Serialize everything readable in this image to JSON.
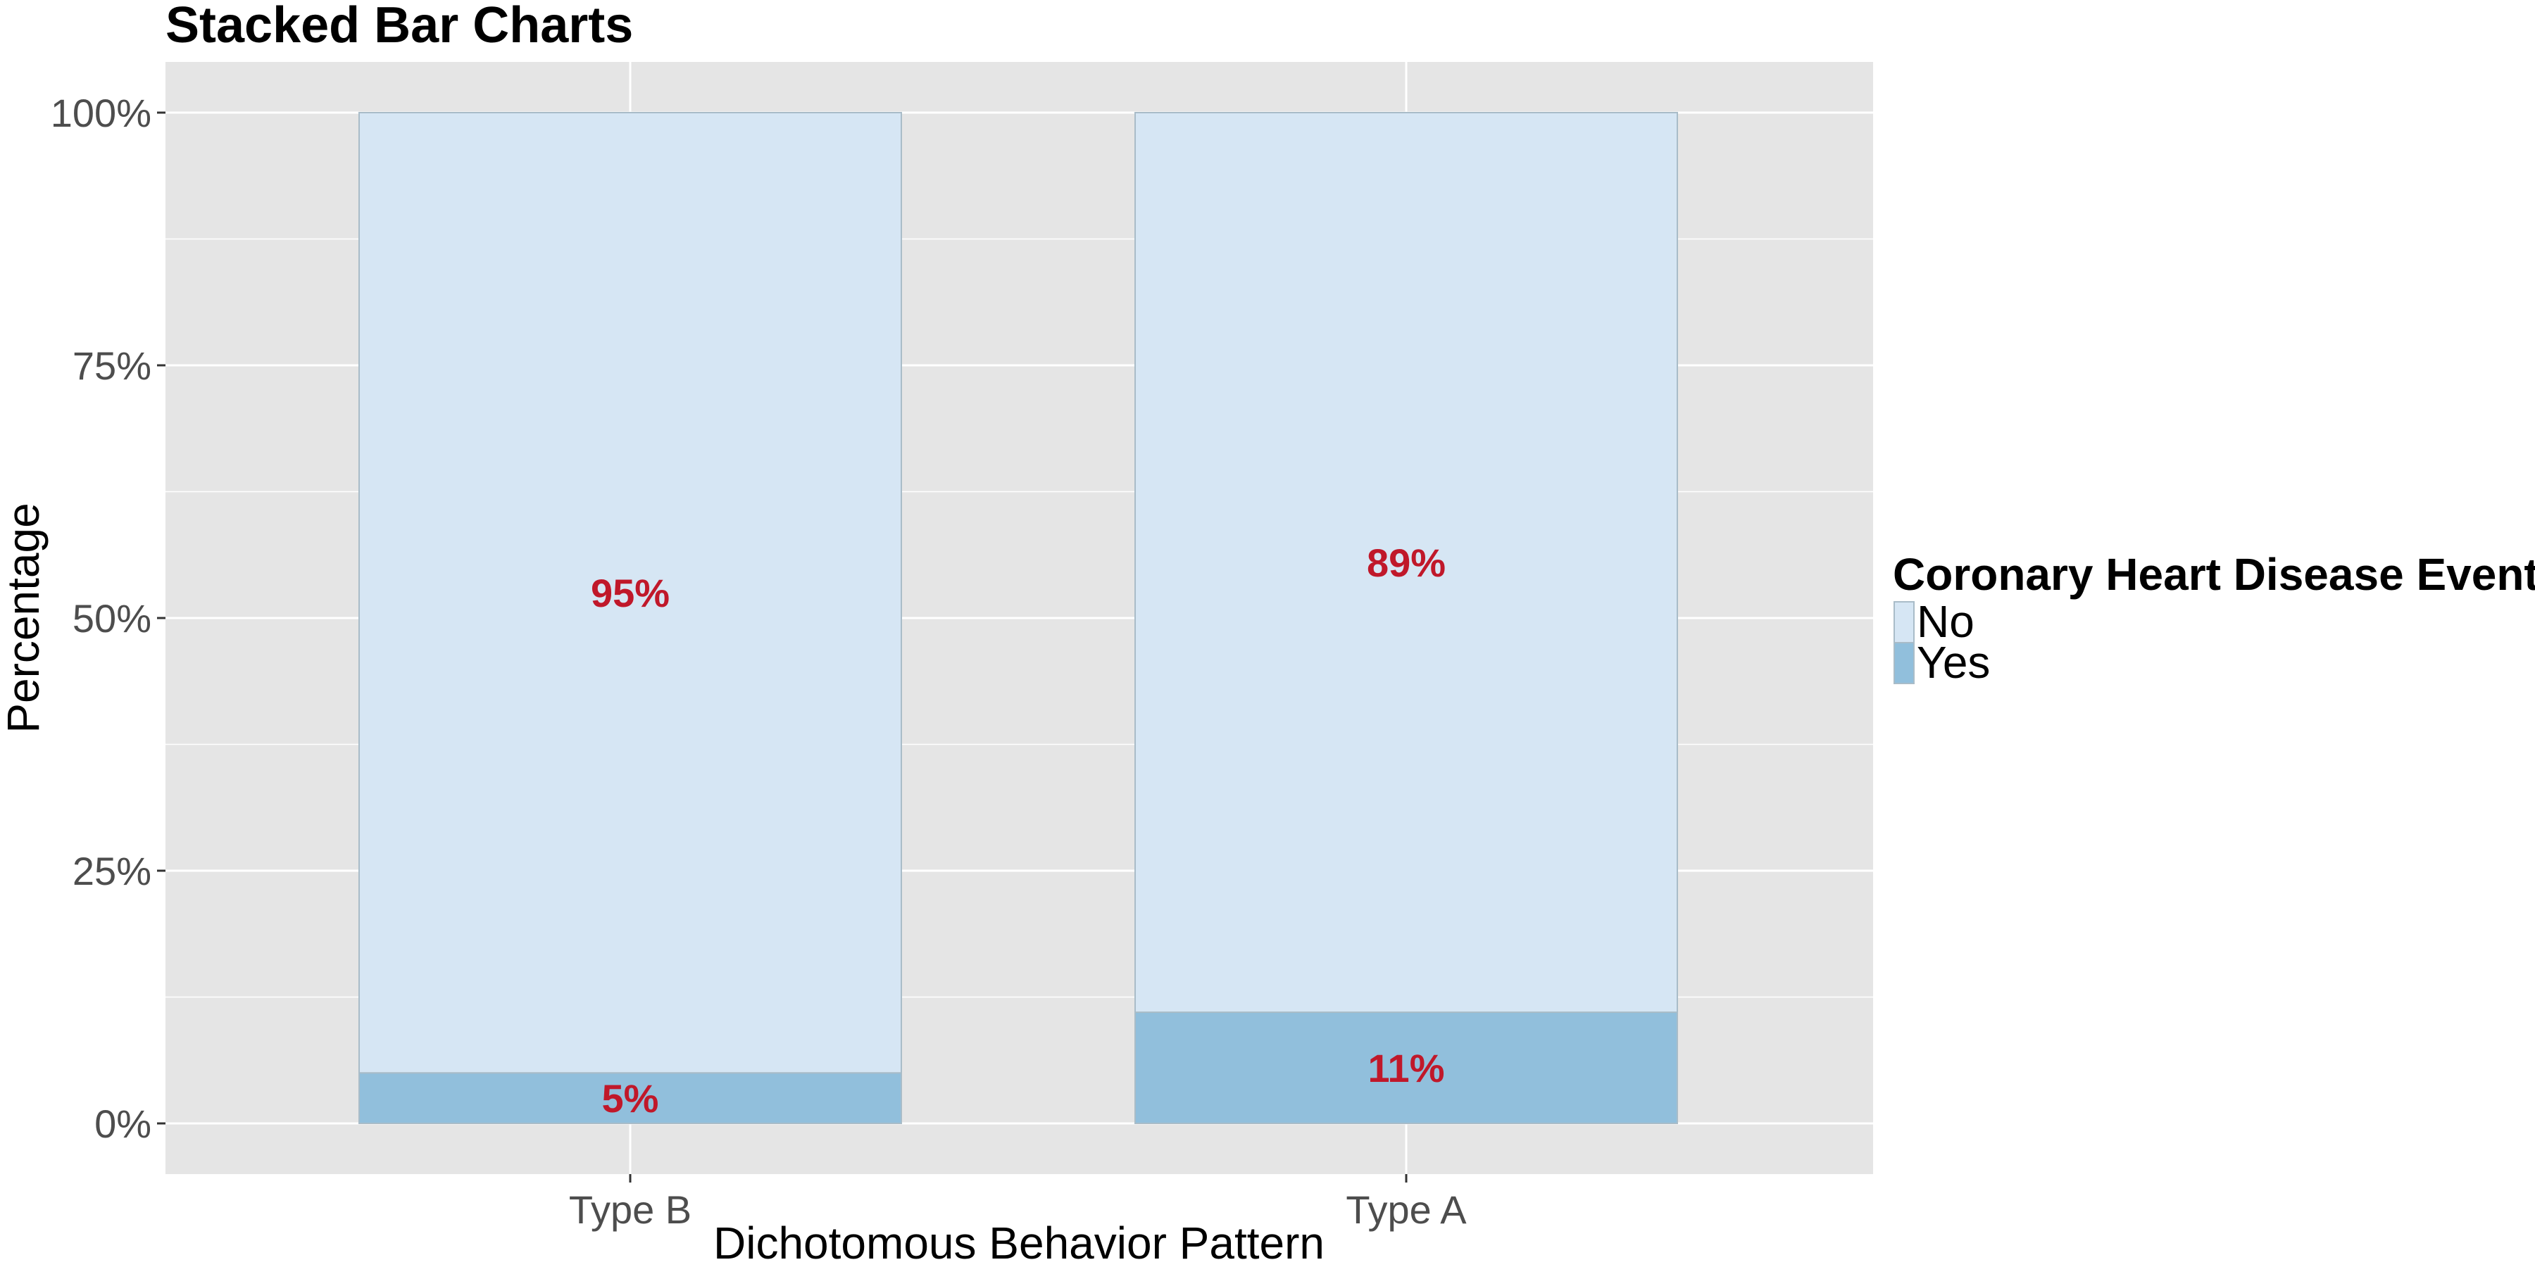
{
  "chart_data": {
    "type": "bar",
    "stacked": true,
    "title": "Stacked Bar Charts",
    "xlabel": "Dichotomous Behavior Pattern",
    "ylabel": "Percentage",
    "categories": [
      "Type B",
      "Type A"
    ],
    "series": [
      {
        "name": "No",
        "values": [
          95,
          89
        ],
        "color": "#d6e6f4"
      },
      {
        "name": "Yes",
        "values": [
          5,
          11
        ],
        "color": "#91bfdc"
      }
    ],
    "data_labels": [
      {
        "category": "Type B",
        "series": "No",
        "text": "95%"
      },
      {
        "category": "Type B",
        "series": "Yes",
        "text": "5%"
      },
      {
        "category": "Type A",
        "series": "No",
        "text": "89%"
      },
      {
        "category": "Type A",
        "series": "Yes",
        "text": "11%"
      }
    ],
    "ylim": [
      0,
      100
    ],
    "y_ticks": [
      0,
      25,
      50,
      75,
      100
    ],
    "y_tick_labels": [
      "0%",
      "25%",
      "50%",
      "75%",
      "100%"
    ],
    "grid": true,
    "legend": {
      "title": "Coronary Heart Disease Event",
      "placement": "right",
      "entries": [
        "No",
        "Yes"
      ]
    },
    "colors": {
      "panel_background": "#e5e5e5",
      "grid_line": "#ffffff",
      "bar_outline": "#a9bcc8",
      "data_label": "#c0182a"
    }
  }
}
